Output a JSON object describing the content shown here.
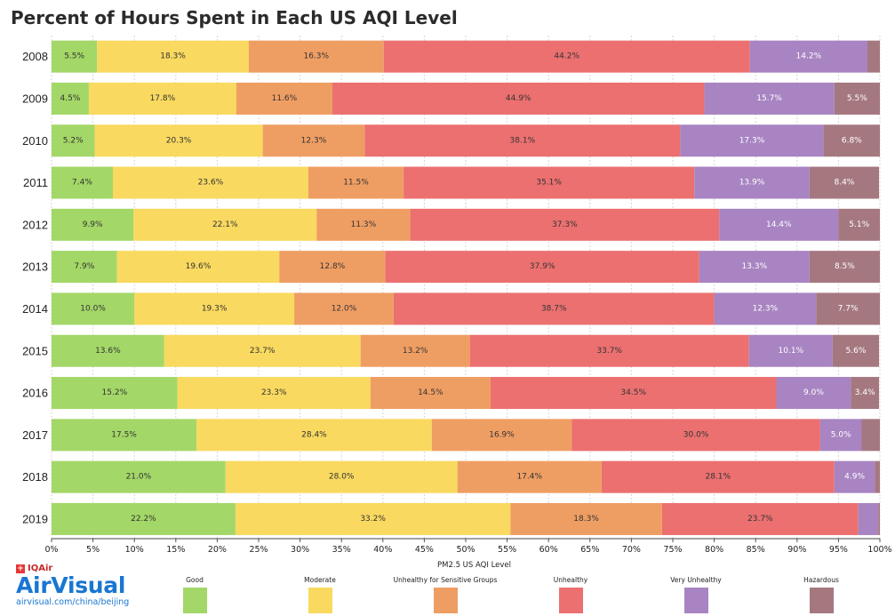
{
  "chart_data": {
    "type": "bar",
    "orientation": "horizontal",
    "stacked": true,
    "title": "Percent of Hours Spent in Each US AQI Level",
    "xlabel": "PM2.5 US AQI Level",
    "ylabel": "",
    "xlim": [
      0,
      100
    ],
    "grid": true,
    "legend_position": "bottom",
    "categories": [
      "2008",
      "2009",
      "2010",
      "2011",
      "2012",
      "2013",
      "2014",
      "2015",
      "2016",
      "2017",
      "2018",
      "2019"
    ],
    "x_ticks": [
      "0%",
      "5%",
      "10%",
      "15%",
      "20%",
      "25%",
      "30%",
      "35%",
      "40%",
      "45%",
      "50%",
      "55%",
      "60%",
      "65%",
      "70%",
      "75%",
      "80%",
      "85%",
      "90%",
      "95%",
      "100%"
    ],
    "series": [
      {
        "name": "Good",
        "color": "#a3d767",
        "text": "dark",
        "values": [
          5.5,
          4.5,
          5.2,
          7.4,
          9.9,
          7.9,
          10.0,
          13.6,
          15.2,
          17.5,
          21.0,
          22.2
        ]
      },
      {
        "name": "Moderate",
        "color": "#f9d95f",
        "text": "dark",
        "values": [
          18.3,
          17.8,
          20.3,
          23.6,
          22.1,
          19.6,
          19.3,
          23.7,
          23.3,
          28.4,
          28.0,
          33.2
        ]
      },
      {
        "name": "Unhealthy for Sensitive Groups",
        "color": "#ef9e63",
        "text": "dark",
        "values": [
          16.3,
          11.6,
          12.3,
          11.5,
          11.3,
          12.8,
          12.0,
          13.2,
          14.5,
          16.9,
          17.4,
          18.3
        ]
      },
      {
        "name": "Unhealthy",
        "color": "#ec7070",
        "text": "dark",
        "values": [
          44.2,
          44.9,
          38.1,
          35.1,
          37.3,
          37.9,
          38.7,
          33.7,
          34.5,
          30.0,
          28.1,
          23.7
        ]
      },
      {
        "name": "Very Unhealthy",
        "color": "#a884c2",
        "text": "light",
        "values": [
          14.2,
          15.7,
          17.3,
          13.9,
          14.4,
          13.3,
          12.3,
          10.1,
          9.0,
          5.0,
          4.9,
          2.4
        ]
      },
      {
        "name": "Hazardous",
        "color": "#a57880",
        "text": "light",
        "values": [
          1.5,
          5.5,
          6.8,
          8.4,
          5.1,
          8.5,
          7.7,
          5.6,
          3.4,
          2.2,
          0.6,
          0.2
        ]
      }
    ],
    "data_labels": [
      [
        "5.5%",
        "18.3%",
        "16.3%",
        "44.2%",
        "14.2%",
        ""
      ],
      [
        "4.5%",
        "17.8%",
        "11.6%",
        "44.9%",
        "15.7%",
        "5.5%"
      ],
      [
        "5.2%",
        "20.3%",
        "12.3%",
        "38.1%",
        "17.3%",
        "6.8%"
      ],
      [
        "7.4%",
        "23.6%",
        "11.5%",
        "35.1%",
        "13.9%",
        "8.4%"
      ],
      [
        "9.9%",
        "22.1%",
        "11.3%",
        "37.3%",
        "14.4%",
        "5.1%"
      ],
      [
        "7.9%",
        "19.6%",
        "12.8%",
        "37.9%",
        "13.3%",
        "8.5%"
      ],
      [
        "10.0%",
        "19.3%",
        "12.0%",
        "38.7%",
        "12.3%",
        "7.7%"
      ],
      [
        "13.6%",
        "23.7%",
        "13.2%",
        "33.7%",
        "10.1%",
        "5.6%"
      ],
      [
        "15.2%",
        "23.3%",
        "14.5%",
        "34.5%",
        "9.0%",
        "3.4%"
      ],
      [
        "17.5%",
        "28.4%",
        "16.9%",
        "30.0%",
        "5.0%",
        ""
      ],
      [
        "21.0%",
        "28.0%",
        "17.4%",
        "28.1%",
        "4.9%",
        ""
      ],
      [
        "22.2%",
        "33.2%",
        "18.3%",
        "23.7%",
        "",
        ""
      ]
    ]
  },
  "legend": [
    {
      "label": "Good",
      "color": "#a3d767"
    },
    {
      "label": "Moderate",
      "color": "#f9d95f"
    },
    {
      "label": "Unhealthy for Sensitive Groups",
      "color": "#ef9e63"
    },
    {
      "label": "Unhealthy",
      "color": "#ec7070"
    },
    {
      "label": "Very Unhealthy",
      "color": "#a884c2"
    },
    {
      "label": "Hazardous",
      "color": "#a57880"
    }
  ],
  "brand": {
    "small": "IQAir",
    "main": "AirVisual",
    "url": "airvisual.com/china/beijing",
    "colors": {
      "small": "#c62828",
      "main": "#1976d2"
    }
  }
}
